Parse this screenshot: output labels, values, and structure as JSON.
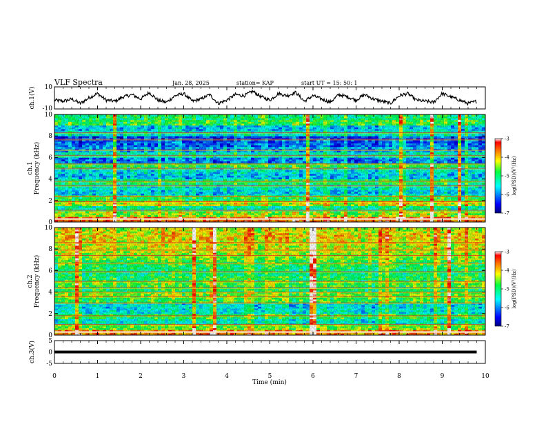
{
  "header": {
    "title": "VLF Spectra",
    "date": "Jan. 28, 2025",
    "station": "station= KAP",
    "start": "start  UT =   15: 50: 1"
  },
  "chart_data": [
    {
      "type": "line",
      "panel": "ch1-waveform",
      "ylabel": "ch.1(V)",
      "ylim": [
        -10,
        10
      ],
      "yticks": [
        "10",
        "-10"
      ],
      "xlim": [
        0,
        10
      ],
      "x": [
        0,
        0.2,
        0.4,
        0.6,
        0.8,
        1.0,
        1.2,
        1.4,
        1.6,
        1.8,
        2.0,
        2.2,
        2.4,
        2.6,
        2.8,
        3.0,
        3.2,
        3.4,
        3.6,
        3.8,
        4.0,
        4.2,
        4.4,
        4.6,
        4.8,
        5.0,
        5.2,
        5.4,
        5.6,
        5.8,
        6.0,
        6.2,
        6.4,
        6.6,
        6.8,
        7.0,
        7.2,
        7.4,
        7.6,
        7.8,
        8.0,
        8.2,
        8.4,
        8.6,
        8.8,
        9.0,
        9.2,
        9.4,
        9.6,
        9.8
      ],
      "y": [
        -2,
        -3,
        -1,
        -5,
        0,
        4,
        -2,
        -3,
        1,
        3,
        -1,
        5,
        -2,
        -4,
        2,
        4,
        -3,
        -1,
        3,
        -5,
        -2,
        3,
        2,
        6,
        1,
        -2,
        4,
        2,
        5,
        -3,
        2,
        -1,
        -4,
        3,
        1,
        -2,
        3,
        -1,
        -3,
        -5,
        2,
        4,
        -2,
        -3,
        -4,
        4,
        1,
        -2,
        -5,
        -3
      ]
    },
    {
      "type": "heatmap",
      "panel": "ch1-spectrogram",
      "ylabel": "ch.1\nFrequency (kHz)",
      "ylim": [
        0,
        10
      ],
      "yticks": [
        "0",
        "2",
        "4",
        "6",
        "8",
        "10"
      ],
      "xlim": [
        0,
        10
      ],
      "colorbar": {
        "label": "log(PSD)(V²/Hz)",
        "range": [
          -7,
          -3
        ],
        "ticks": [
          "-3",
          "-4",
          "-5",
          "-6",
          "-7"
        ]
      },
      "freq_kHz": [
        0.25,
        0.75,
        1.25,
        1.75,
        2.25,
        2.75,
        3.25,
        3.75,
        4.25,
        4.75,
        5.25,
        5.75,
        6.25,
        6.75,
        7.25,
        7.75,
        8.25,
        8.75,
        9.25,
        9.75
      ],
      "mean_log_psd": [
        -3.6,
        -4.4,
        -5.2,
        -4.3,
        -4.9,
        -5.6,
        -5.4,
        -5.0,
        -5.7,
        -5.5,
        -4.9,
        -6.0,
        -5.3,
        -5.8,
        -6.1,
        -6.2,
        -5.4,
        -5.7,
        -4.8,
        -5.0
      ],
      "band_lines_kHz": [
        0.3,
        1.1,
        1.9,
        2.4,
        3.4,
        3.8,
        5.0,
        5.4,
        6.2,
        6.7,
        7.7,
        8.3
      ]
    },
    {
      "type": "heatmap",
      "panel": "ch2-spectrogram",
      "ylabel": "ch.2\nFrequency (kHz)",
      "ylim": [
        0,
        10
      ],
      "yticks": [
        "0",
        "2",
        "4",
        "6",
        "8",
        "10"
      ],
      "xlim": [
        0,
        10
      ],
      "colorbar": {
        "label": "log(PSD)(V²/Hz)",
        "range": [
          -7,
          -3
        ],
        "ticks": [
          "-3",
          "-4",
          "-5",
          "-6",
          "-7"
        ]
      },
      "freq_kHz": [
        0.25,
        0.75,
        1.25,
        1.75,
        2.25,
        2.75,
        3.25,
        3.75,
        4.25,
        4.75,
        5.25,
        5.75,
        6.25,
        6.75,
        7.25,
        7.75,
        8.25,
        8.75,
        9.25,
        9.75
      ],
      "mean_log_psd": [
        -3.8,
        -4.6,
        -5.4,
        -4.9,
        -5.5,
        -5.6,
        -4.8,
        -4.6,
        -5.0,
        -4.7,
        -4.9,
        -5.1,
        -5.0,
        -4.8,
        -4.6,
        -4.4,
        -4.3,
        -4.2,
        -4.1,
        -4.3
      ],
      "band_lines_kHz": [
        0.3,
        1.0,
        1.8,
        3.0,
        3.6,
        4.0,
        4.4,
        5.0,
        5.9,
        6.7,
        7.4,
        7.9,
        8.6
      ]
    },
    {
      "type": "line",
      "panel": "ch3-waveform",
      "ylabel": "ch.3(V)",
      "ylim": [
        -5,
        5
      ],
      "yticks": [
        "5",
        "0",
        "-5"
      ],
      "xlim": [
        0,
        10
      ],
      "x": [
        0,
        9.8
      ],
      "y": [
        0,
        0
      ]
    }
  ],
  "xaxis": {
    "label": "Time  (min)",
    "ticks": [
      "0",
      "1",
      "2",
      "3",
      "4",
      "5",
      "6",
      "7",
      "8",
      "9",
      "10"
    ]
  }
}
